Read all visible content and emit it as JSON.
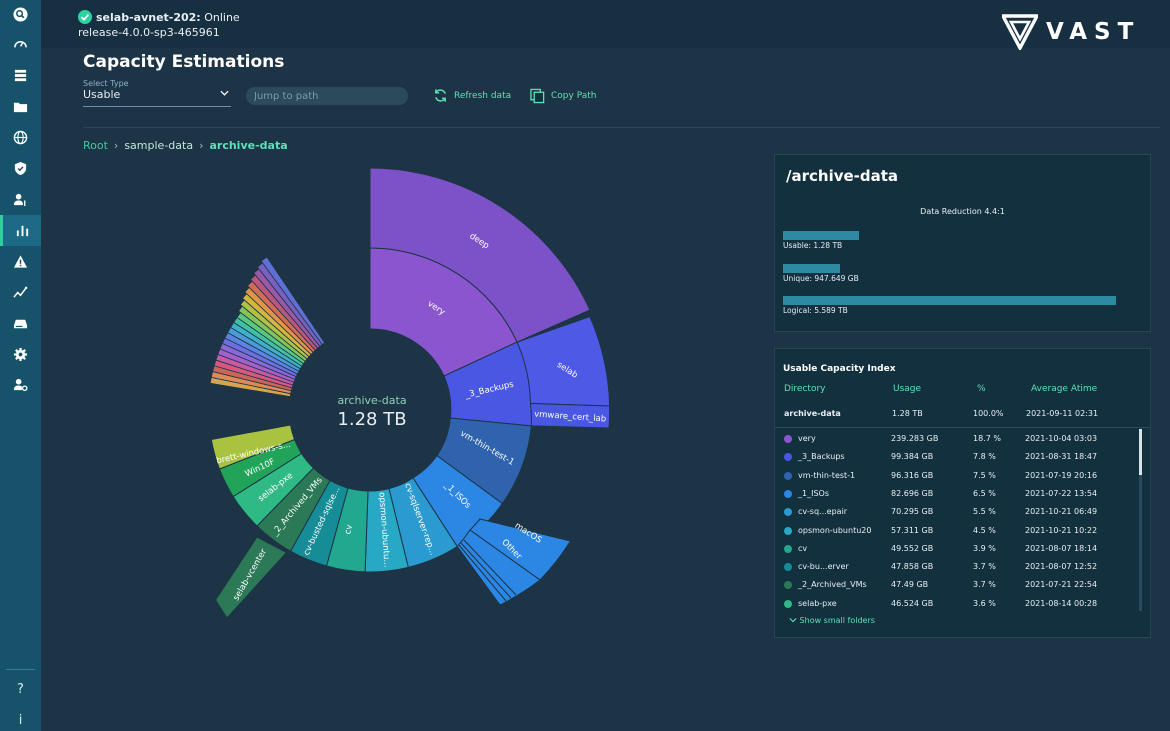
{
  "sidebar": {
    "icons": [
      "search-icon",
      "speedometer-icon",
      "server-icon",
      "folder-icon",
      "globe-icon",
      "shield-icon",
      "user-key-icon",
      "bar-chart-icon",
      "warning-icon",
      "trend-icon",
      "drive-icon",
      "gear-icon",
      "user-gear-icon"
    ],
    "active": "bar-chart-icon",
    "help_label": "?",
    "info_label": "i"
  },
  "status": {
    "cluster": "selab-avnet-202:",
    "state": "Online",
    "release": "release-4.0.0-sp3-465961"
  },
  "logo": {
    "text": "VAST"
  },
  "page": {
    "title": "Capacity Estimations",
    "select_label": "Select Type",
    "select_value": "Usable",
    "jump_placeholder": "Jump to path",
    "refresh_label": "Refresh data",
    "copy_label": "Copy Path"
  },
  "breadcrumb": [
    "Root",
    "sample-data",
    "archive-data"
  ],
  "sunburst": {
    "center_name": "archive-data",
    "center_value": "1.28 TB",
    "labels": [
      "deep",
      "very",
      "selab",
      "_3_Backups",
      "vmware_cert_lab",
      "vm-thin-test-1",
      "_1_ISOs",
      "macOS",
      "Other",
      "cv-sqlserver-rep...",
      "opsmon-ubuntu...",
      "cv",
      "cv-busted-sqlse...",
      "_2_Archived_VMs",
      "selab-pxe",
      "Win10F",
      "brett-windows-s...",
      "selab-vcenter"
    ]
  },
  "summary": {
    "path": "/archive-data",
    "reduction": "Data Reduction 4.4:1",
    "usable": "Usable: 1.28 TB",
    "usable_fraction": 0.229,
    "unique": "Unique: 947.649 GB",
    "unique_fraction": 0.17,
    "logical": "Logical: 5.589 TB",
    "logical_fraction": 1.0
  },
  "index": {
    "title": "Usable Capacity Index",
    "headers": [
      "Directory",
      "Usage",
      "%",
      "Average Atime"
    ],
    "total": {
      "name": "archive-data",
      "usage": "1.28 TB",
      "pct": "100.0%",
      "atime": "2021-09-11 02:31"
    },
    "rows": [
      {
        "color": "#8a55cf",
        "name": "very",
        "usage": "239.283 GB",
        "pct": "18.7 %",
        "atime": "2021-10-04 03:03"
      },
      {
        "color": "#4a57e3",
        "name": "_3_Backups",
        "usage": "99.384 GB",
        "pct": "7.8 %",
        "atime": "2021-08-31 18:47"
      },
      {
        "color": "#2f63ad",
        "name": "vm-thin-test-1",
        "usage": "96.316 GB",
        "pct": "7.5 %",
        "atime": "2021-07-19 20:16"
      },
      {
        "color": "#2c86e4",
        "name": "_1_ISOs",
        "usage": "82.696 GB",
        "pct": "6.5 %",
        "atime": "2021-07-22 13:54"
      },
      {
        "color": "#2a9ad0",
        "name": "cv-sq...epair",
        "usage": "70.295 GB",
        "pct": "5.5 %",
        "atime": "2021-10-21 06:49"
      },
      {
        "color": "#27a8c4",
        "name": "opsmon-ubuntu20",
        "usage": "57.311 GB",
        "pct": "4.5 %",
        "atime": "2021-10-21 10:22"
      },
      {
        "color": "#21a88e",
        "name": "cv",
        "usage": "49.552 GB",
        "pct": "3.9 %",
        "atime": "2021-08-07 18:14"
      },
      {
        "color": "#168c96",
        "name": "cv-bu...erver",
        "usage": "47.858 GB",
        "pct": "3.7 %",
        "atime": "2021-08-07 12:52"
      },
      {
        "color": "#2c7a55",
        "name": "_2_Archived_VMs",
        "usage": "47.49 GB",
        "pct": "3.7 %",
        "atime": "2021-07-21 22:54"
      },
      {
        "color": "#2fb985",
        "name": "selab-pxe",
        "usage": "46.524 GB",
        "pct": "3.6 %",
        "atime": "2021-08-14 00:28"
      }
    ],
    "show_small": "Show small folders"
  }
}
